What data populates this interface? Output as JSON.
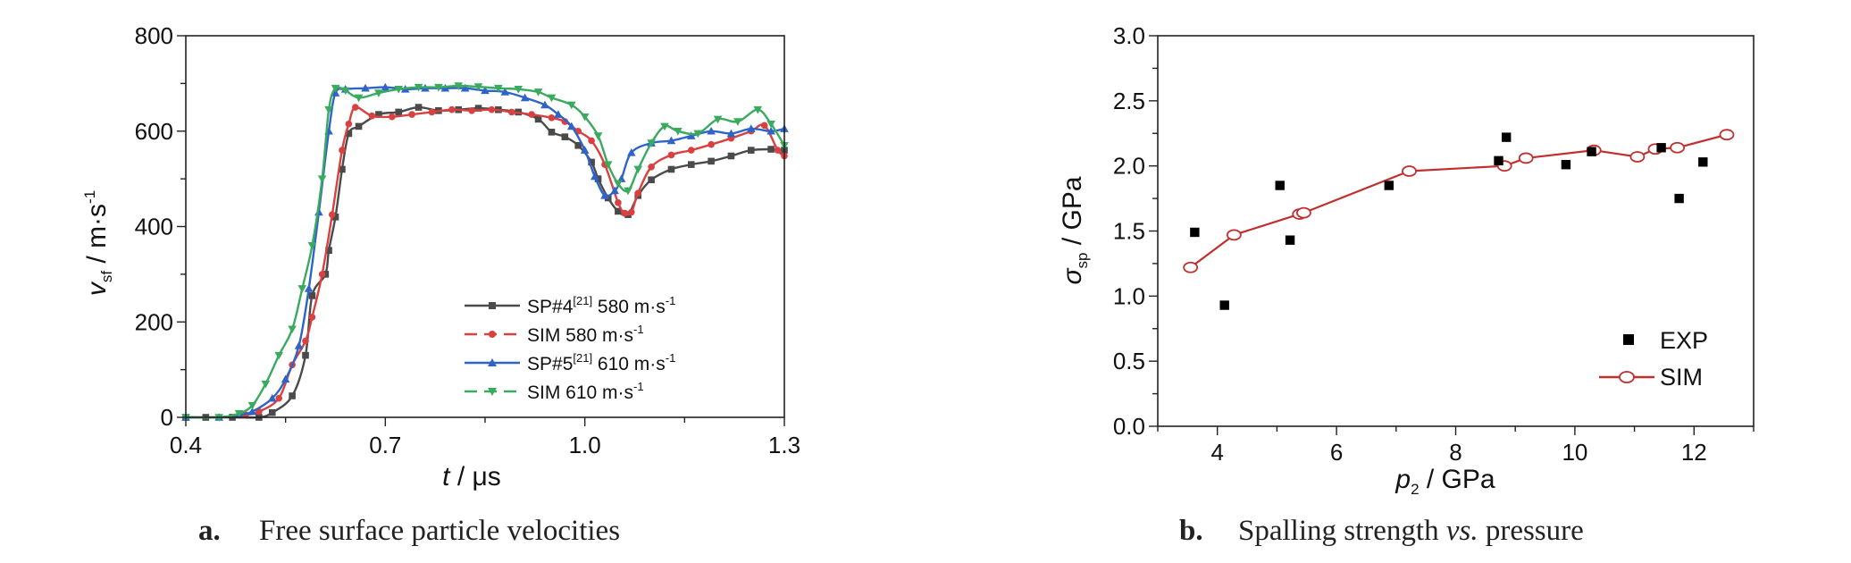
{
  "chart_data": [
    {
      "type": "line",
      "caption_letter": "a.",
      "caption": "Free surface particle velocities",
      "xlabel": {
        "var": "t",
        "unit": " / μs"
      },
      "ylabel": {
        "var": "v",
        "sub": "sf",
        "unit": " / m·s",
        "sup": "-1"
      },
      "xlim": [
        0.4,
        1.3
      ],
      "ylim": [
        0,
        800
      ],
      "xticks": [
        "0.4",
        "0.7",
        "1.0",
        "1.3"
      ],
      "yticks": [
        "0",
        "200",
        "400",
        "600",
        "800"
      ],
      "legend_position": "right-center",
      "series": [
        {
          "name": "SP#4",
          "ref": "[21]",
          "suffix": " 580 m·s",
          "suffix_sup": "-1",
          "color": "#4a4a4a",
          "marker": "square",
          "dash": "solid",
          "points": [
            [
              0.4,
              0
            ],
            [
              0.43,
              0
            ],
            [
              0.47,
              0
            ],
            [
              0.51,
              0
            ],
            [
              0.53,
              10
            ],
            [
              0.56,
              45
            ],
            [
              0.58,
              130
            ],
            [
              0.59,
              255
            ],
            [
              0.61,
              300
            ],
            [
              0.615,
              350
            ],
            [
              0.625,
              420
            ],
            [
              0.635,
              520
            ],
            [
              0.645,
              595
            ],
            [
              0.66,
              610
            ],
            [
              0.69,
              635
            ],
            [
              0.72,
              640
            ],
            [
              0.75,
              650
            ],
            [
              0.78,
              643
            ],
            [
              0.81,
              645
            ],
            [
              0.84,
              648
            ],
            [
              0.87,
              645
            ],
            [
              0.9,
              640
            ],
            [
              0.93,
              625
            ],
            [
              0.95,
              598
            ],
            [
              0.97,
              588
            ],
            [
              0.99,
              570
            ],
            [
              1.01,
              535
            ],
            [
              1.02,
              500
            ],
            [
              1.035,
              460
            ],
            [
              1.05,
              432
            ],
            [
              1.065,
              425
            ],
            [
              1.08,
              465
            ],
            [
              1.1,
              498
            ],
            [
              1.13,
              520
            ],
            [
              1.16,
              530
            ],
            [
              1.19,
              537
            ],
            [
              1.22,
              548
            ],
            [
              1.25,
              560
            ],
            [
              1.28,
              562
            ],
            [
              1.3,
              560
            ]
          ]
        },
        {
          "name": "SIM",
          "ref": "",
          "suffix": " 580 m·s",
          "suffix_sup": "-1",
          "color": "#d94040",
          "marker": "circle",
          "dash": "dashed",
          "points": [
            [
              0.4,
              0
            ],
            [
              0.45,
              0
            ],
            [
              0.49,
              5
            ],
            [
              0.51,
              12
            ],
            [
              0.54,
              40
            ],
            [
              0.56,
              110
            ],
            [
              0.58,
              160
            ],
            [
              0.59,
              210
            ],
            [
              0.605,
              300
            ],
            [
              0.62,
              425
            ],
            [
              0.635,
              560
            ],
            [
              0.645,
              615
            ],
            [
              0.655,
              650
            ],
            [
              0.68,
              632
            ],
            [
              0.71,
              630
            ],
            [
              0.74,
              635
            ],
            [
              0.77,
              640
            ],
            [
              0.8,
              645
            ],
            [
              0.83,
              643
            ],
            [
              0.86,
              645
            ],
            [
              0.89,
              640
            ],
            [
              0.92,
              635
            ],
            [
              0.95,
              628
            ],
            [
              0.97,
              620
            ],
            [
              0.99,
              600
            ],
            [
              1.01,
              580
            ],
            [
              1.03,
              530
            ],
            [
              1.05,
              450
            ],
            [
              1.06,
              428
            ],
            [
              1.07,
              430
            ],
            [
              1.08,
              470
            ],
            [
              1.1,
              525
            ],
            [
              1.13,
              550
            ],
            [
              1.16,
              560
            ],
            [
              1.19,
              572
            ],
            [
              1.22,
              585
            ],
            [
              1.25,
              600
            ],
            [
              1.27,
              612
            ],
            [
              1.29,
              560
            ],
            [
              1.3,
              548
            ]
          ]
        },
        {
          "name": "SP#5",
          "ref": "[21]",
          "suffix": " 610 m·s",
          "suffix_sup": "-1",
          "color": "#2e63c8",
          "marker": "triangle-up",
          "dash": "solid",
          "points": [
            [
              0.4,
              0
            ],
            [
              0.45,
              0
            ],
            [
              0.48,
              5
            ],
            [
              0.5,
              12
            ],
            [
              0.53,
              40
            ],
            [
              0.55,
              80
            ],
            [
              0.57,
              150
            ],
            [
              0.585,
              270
            ],
            [
              0.6,
              430
            ],
            [
              0.615,
              600
            ],
            [
              0.625,
              680
            ],
            [
              0.64,
              688
            ],
            [
              0.67,
              690
            ],
            [
              0.7,
              692
            ],
            [
              0.73,
              688
            ],
            [
              0.76,
              690
            ],
            [
              0.79,
              690
            ],
            [
              0.82,
              690
            ],
            [
              0.85,
              685
            ],
            [
              0.88,
              682
            ],
            [
              0.91,
              670
            ],
            [
              0.94,
              655
            ],
            [
              0.96,
              635
            ],
            [
              0.98,
              610
            ],
            [
              1.0,
              560
            ],
            [
              1.015,
              505
            ],
            [
              1.03,
              465
            ],
            [
              1.045,
              475
            ],
            [
              1.055,
              500
            ],
            [
              1.07,
              555
            ],
            [
              1.1,
              575
            ],
            [
              1.13,
              580
            ],
            [
              1.16,
              590
            ],
            [
              1.19,
              600
            ],
            [
              1.22,
              595
            ],
            [
              1.25,
              605
            ],
            [
              1.28,
              600
            ],
            [
              1.3,
              605
            ]
          ]
        },
        {
          "name": "SIM",
          "ref": "",
          "suffix": " 610 m·s",
          "suffix_sup": "-1",
          "color": "#3aaa5e",
          "marker": "triangle-down",
          "dash": "dashed",
          "points": [
            [
              0.4,
              0
            ],
            [
              0.45,
              0
            ],
            [
              0.48,
              8
            ],
            [
              0.5,
              25
            ],
            [
              0.52,
              70
            ],
            [
              0.54,
              130
            ],
            [
              0.56,
              185
            ],
            [
              0.575,
              270
            ],
            [
              0.59,
              360
            ],
            [
              0.605,
              500
            ],
            [
              0.615,
              645
            ],
            [
              0.625,
              690
            ],
            [
              0.64,
              685
            ],
            [
              0.66,
              670
            ],
            [
              0.69,
              680
            ],
            [
              0.72,
              688
            ],
            [
              0.75,
              692
            ],
            [
              0.78,
              692
            ],
            [
              0.81,
              695
            ],
            [
              0.84,
              693
            ],
            [
              0.87,
              690
            ],
            [
              0.9,
              688
            ],
            [
              0.93,
              682
            ],
            [
              0.95,
              670
            ],
            [
              0.98,
              655
            ],
            [
              1.0,
              630
            ],
            [
              1.02,
              590
            ],
            [
              1.035,
              530
            ],
            [
              1.05,
              490
            ],
            [
              1.065,
              475
            ],
            [
              1.08,
              520
            ],
            [
              1.1,
              575
            ],
            [
              1.12,
              610
            ],
            [
              1.14,
              600
            ],
            [
              1.17,
              595
            ],
            [
              1.2,
              625
            ],
            [
              1.23,
              620
            ],
            [
              1.26,
              645
            ],
            [
              1.28,
              615
            ],
            [
              1.3,
              570
            ]
          ]
        }
      ]
    },
    {
      "type": "scatter",
      "caption_letter": "b.",
      "caption": "Spalling strength ",
      "caption_vs": "vs.",
      "caption_tail": " pressure",
      "xlabel": {
        "var": "p",
        "sub": "2",
        "unit": " / GPa"
      },
      "ylabel": {
        "var": "σ",
        "sub": "sp",
        "unit": " / GPa"
      },
      "xlim": [
        3,
        13
      ],
      "ylim": [
        0,
        3
      ],
      "xticks": [
        "4",
        "6",
        "8",
        "10",
        "12"
      ],
      "yticks": [
        "0.0",
        "0.5",
        "1.0",
        "1.5",
        "2.0",
        "2.5",
        "3.0"
      ],
      "legend_position": "bottom-right",
      "series": [
        {
          "name": "EXP",
          "color": "#000000",
          "marker": "square",
          "points": [
            [
              3.62,
              1.49
            ],
            [
              4.12,
              0.93
            ],
            [
              5.05,
              1.85
            ],
            [
              5.22,
              1.43
            ],
            [
              6.88,
              1.85
            ],
            [
              8.72,
              2.04
            ],
            [
              8.85,
              2.22
            ],
            [
              9.85,
              2.01
            ],
            [
              10.28,
              2.11
            ],
            [
              11.45,
              2.14
            ],
            [
              11.75,
              1.75
            ],
            [
              12.15,
              2.03
            ]
          ]
        },
        {
          "name": "SIM",
          "color": "#c0302e",
          "marker": "open-circle",
          "points": [
            [
              3.55,
              1.22
            ],
            [
              4.28,
              1.47
            ],
            [
              5.38,
              1.63
            ],
            [
              5.45,
              1.64
            ],
            [
              7.22,
              1.96
            ],
            [
              8.82,
              2.0
            ],
            [
              9.18,
              2.06
            ],
            [
              10.32,
              2.12
            ],
            [
              11.05,
              2.07
            ],
            [
              11.35,
              2.13
            ],
            [
              11.72,
              2.14
            ],
            [
              12.55,
              2.24
            ]
          ]
        }
      ]
    }
  ]
}
